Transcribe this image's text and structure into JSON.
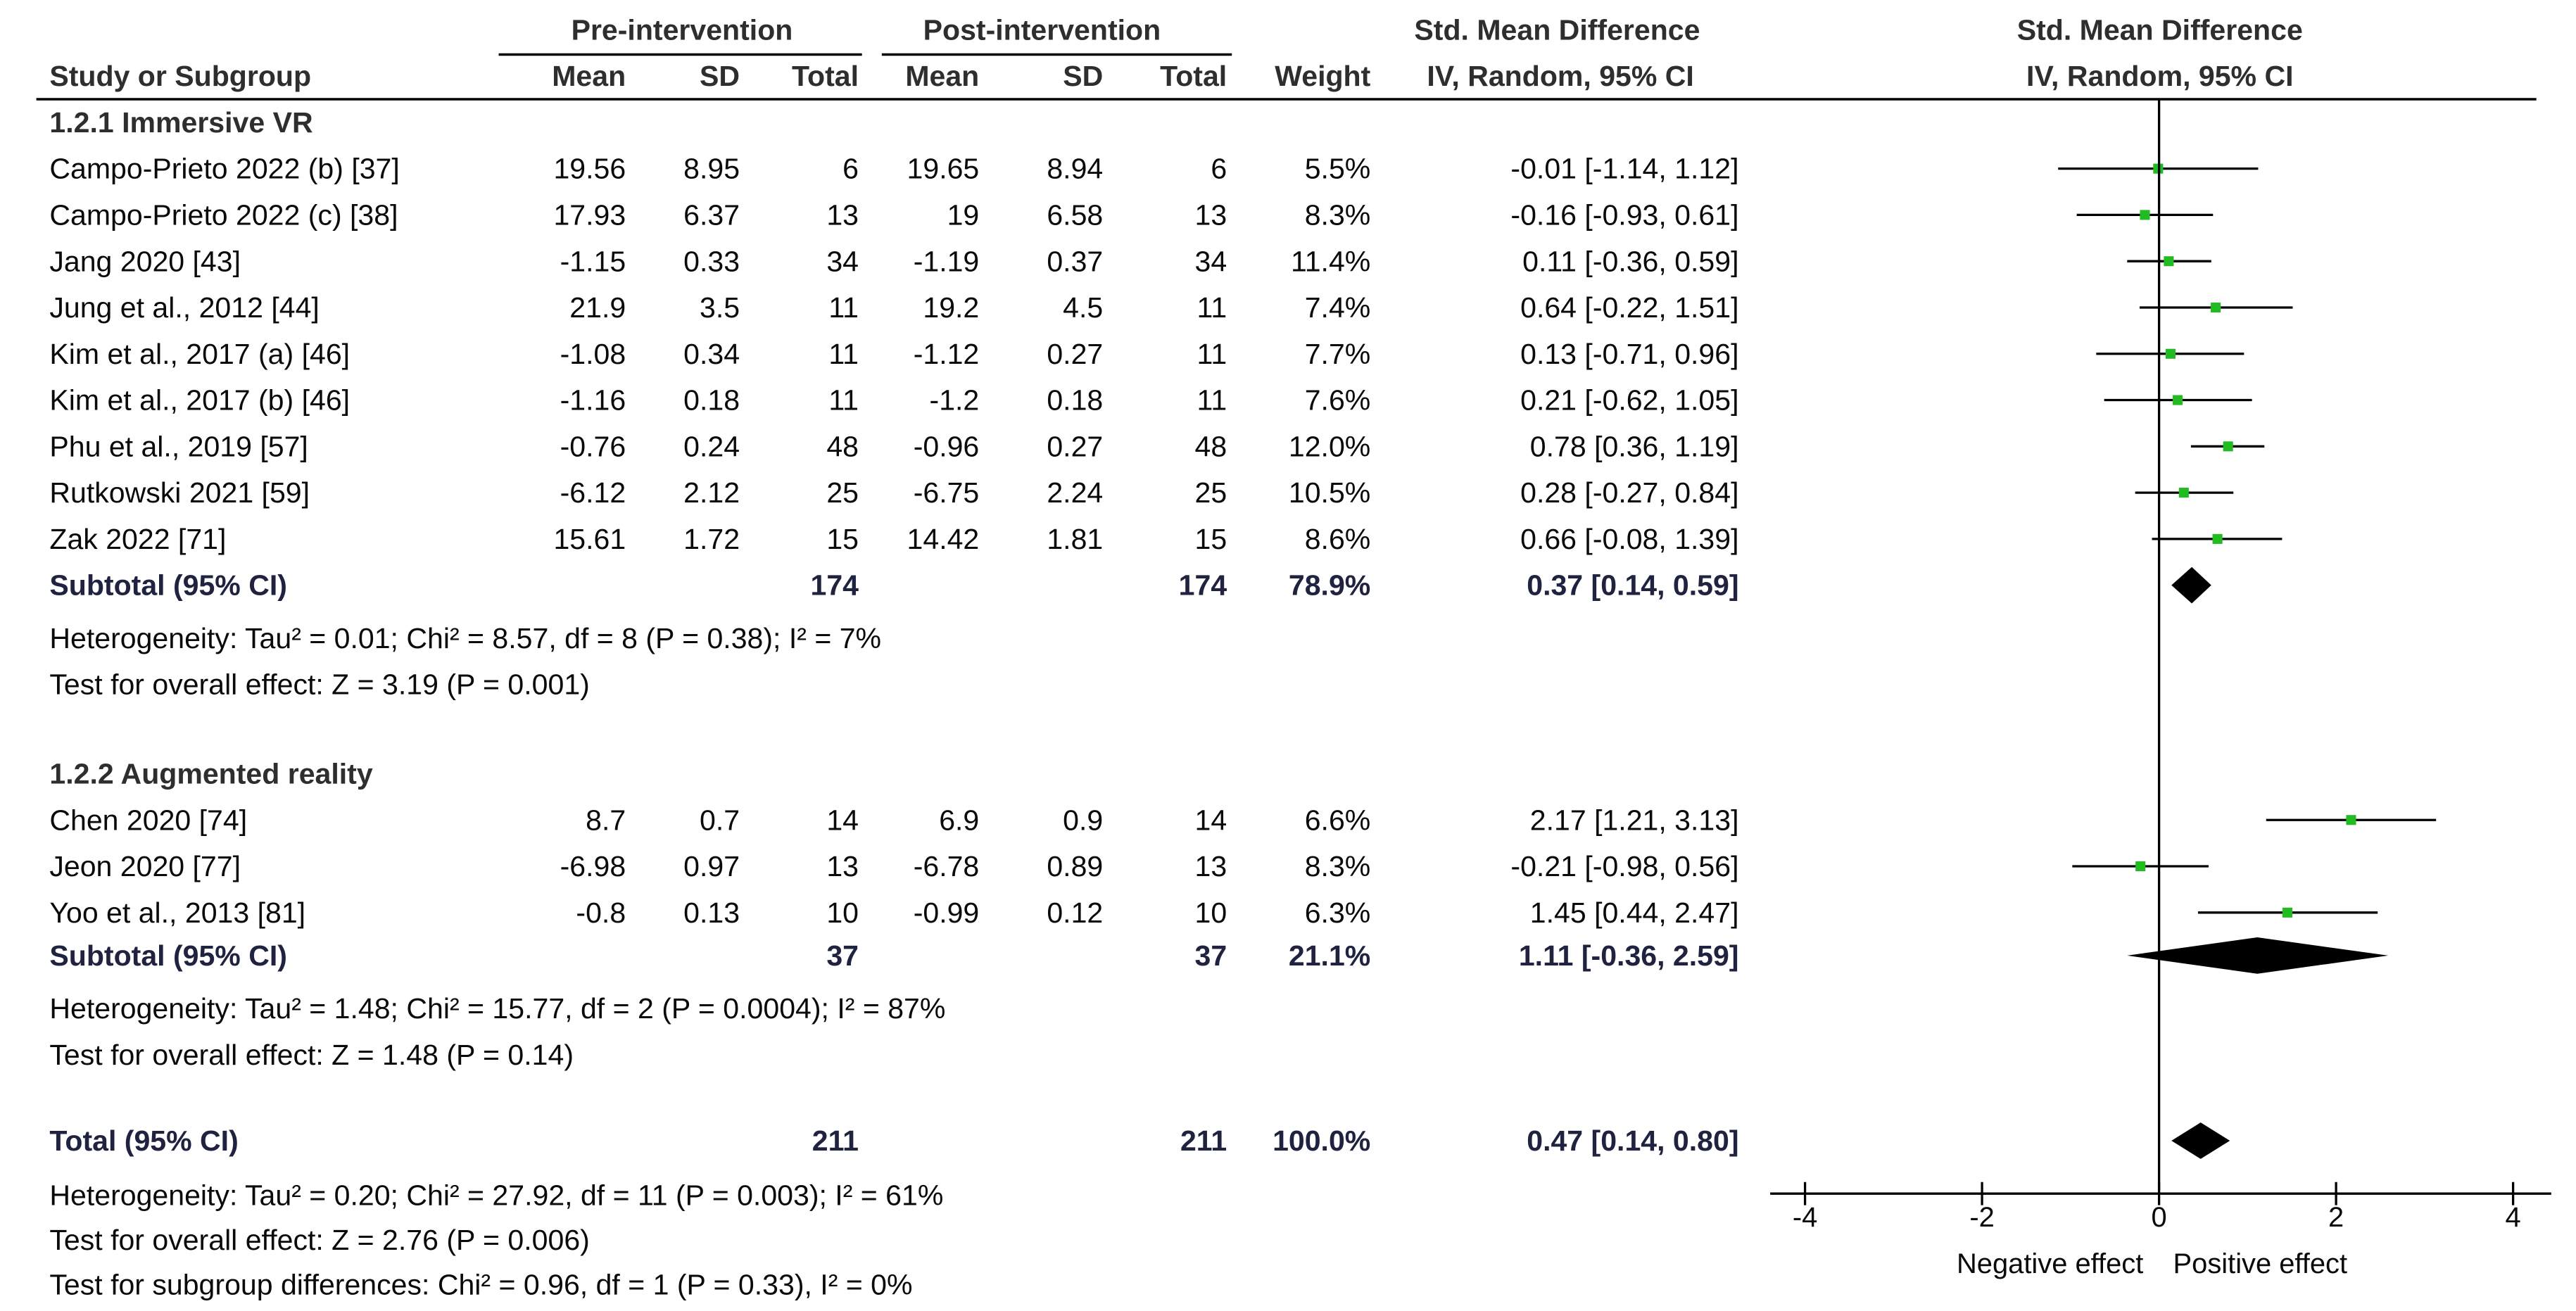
{
  "header": {
    "group_pre": "Pre-intervention",
    "group_post": "Post-intervention",
    "effect_title": "Std. Mean Difference",
    "effect_method": "IV, Random, 95% CI",
    "plot_title": "Std. Mean Difference",
    "plot_method": "IV, Random, 95% CI",
    "col_study": "Study or Subgroup",
    "col_mean": "Mean",
    "col_sd": "SD",
    "col_total": "Total",
    "col_weight": "Weight"
  },
  "colors": {
    "point": "#22bb22",
    "diamond": "#000000",
    "line": "#000000"
  },
  "chart_data": {
    "type": "forest",
    "xlim": [
      -4,
      4
    ],
    "xticks": [
      -4,
      -2,
      0,
      2,
      4
    ],
    "xtick_labels": [
      "-4",
      "-2",
      "0",
      "2",
      "4"
    ],
    "xlabel_left": "Negative effect",
    "xlabel_right": "Positive effect",
    "subgroups": [
      {
        "name": "1.2.1 Immersive VR",
        "studies": [
          {
            "study": "Campo-Prieto 2022 (b) [37]",
            "pre_mean": "19.56",
            "pre_sd": "8.95",
            "pre_total": "6",
            "post_mean": "19.65",
            "post_sd": "8.94",
            "post_total": "6",
            "weight": "5.5%",
            "ci_text": "-0.01 [-1.14, 1.12]",
            "est": -0.01,
            "lo": -1.14,
            "hi": 1.12
          },
          {
            "study": "Campo-Prieto 2022 (c) [38]",
            "pre_mean": "17.93",
            "pre_sd": "6.37",
            "pre_total": "13",
            "post_mean": "19",
            "post_sd": "6.58",
            "post_total": "13",
            "weight": "8.3%",
            "ci_text": "-0.16 [-0.93, 0.61]",
            "est": -0.16,
            "lo": -0.93,
            "hi": 0.61
          },
          {
            "study": "Jang 2020 [43]",
            "pre_mean": "-1.15",
            "pre_sd": "0.33",
            "pre_total": "34",
            "post_mean": "-1.19",
            "post_sd": "0.37",
            "post_total": "34",
            "weight": "11.4%",
            "ci_text": "0.11 [-0.36, 0.59]",
            "est": 0.11,
            "lo": -0.36,
            "hi": 0.59
          },
          {
            "study": "Jung et al., 2012 [44]",
            "pre_mean": "21.9",
            "pre_sd": "3.5",
            "pre_total": "11",
            "post_mean": "19.2",
            "post_sd": "4.5",
            "post_total": "11",
            "weight": "7.4%",
            "ci_text": "0.64 [-0.22, 1.51]",
            "est": 0.64,
            "lo": -0.22,
            "hi": 1.51
          },
          {
            "study": "Kim et al., 2017 (a) [46]",
            "pre_mean": "-1.08",
            "pre_sd": "0.34",
            "pre_total": "11",
            "post_mean": "-1.12",
            "post_sd": "0.27",
            "post_total": "11",
            "weight": "7.7%",
            "ci_text": "0.13 [-0.71, 0.96]",
            "est": 0.13,
            "lo": -0.71,
            "hi": 0.96
          },
          {
            "study": "Kim et al., 2017 (b) [46]",
            "pre_mean": "-1.16",
            "pre_sd": "0.18",
            "pre_total": "11",
            "post_mean": "-1.2",
            "post_sd": "0.18",
            "post_total": "11",
            "weight": "7.6%",
            "ci_text": "0.21 [-0.62, 1.05]",
            "est": 0.21,
            "lo": -0.62,
            "hi": 1.05
          },
          {
            "study": "Phu et al., 2019 [57]",
            "pre_mean": "-0.76",
            "pre_sd": "0.24",
            "pre_total": "48",
            "post_mean": "-0.96",
            "post_sd": "0.27",
            "post_total": "48",
            "weight": "12.0%",
            "ci_text": "0.78 [0.36, 1.19]",
            "est": 0.78,
            "lo": 0.36,
            "hi": 1.19
          },
          {
            "study": "Rutkowski 2021 [59]",
            "pre_mean": "-6.12",
            "pre_sd": "2.12",
            "pre_total": "25",
            "post_mean": "-6.75",
            "post_sd": "2.24",
            "post_total": "25",
            "weight": "10.5%",
            "ci_text": "0.28 [-0.27, 0.84]",
            "est": 0.28,
            "lo": -0.27,
            "hi": 0.84
          },
          {
            "study": "Zak 2022 [71]",
            "pre_mean": "15.61",
            "pre_sd": "1.72",
            "pre_total": "15",
            "post_mean": "14.42",
            "post_sd": "1.81",
            "post_total": "15",
            "weight": "8.6%",
            "ci_text": "0.66 [-0.08, 1.39]",
            "est": 0.66,
            "lo": -0.08,
            "hi": 1.39
          }
        ],
        "subtotal": {
          "label": "Subtotal (95% CI)",
          "pre_total": "174",
          "post_total": "174",
          "weight": "78.9%",
          "ci_text": "0.37 [0.14, 0.59]",
          "est": 0.37,
          "lo": 0.14,
          "hi": 0.59
        },
        "heterogeneity": "Heterogeneity: Tau² = 0.01; Chi² = 8.57, df = 8 (P = 0.38); I² = 7%",
        "overall": "Test for overall effect: Z = 3.19 (P = 0.001)"
      },
      {
        "name": "1.2.2 Augmented reality",
        "studies": [
          {
            "study": "Chen 2020 [74]",
            "pre_mean": "8.7",
            "pre_sd": "0.7",
            "pre_total": "14",
            "post_mean": "6.9",
            "post_sd": "0.9",
            "post_total": "14",
            "weight": "6.6%",
            "ci_text": "2.17 [1.21, 3.13]",
            "est": 2.17,
            "lo": 1.21,
            "hi": 3.13
          },
          {
            "study": "Jeon 2020 [77]",
            "pre_mean": "-6.98",
            "pre_sd": "0.97",
            "pre_total": "13",
            "post_mean": "-6.78",
            "post_sd": "0.89",
            "post_total": "13",
            "weight": "8.3%",
            "ci_text": "-0.21 [-0.98, 0.56]",
            "est": -0.21,
            "lo": -0.98,
            "hi": 0.56
          },
          {
            "study": "Yoo et al., 2013 [81]",
            "pre_mean": "-0.8",
            "pre_sd": "0.13",
            "pre_total": "10",
            "post_mean": "-0.99",
            "post_sd": "0.12",
            "post_total": "10",
            "weight": "6.3%",
            "ci_text": "1.45 [0.44, 2.47]",
            "est": 1.45,
            "lo": 0.44,
            "hi": 2.47
          }
        ],
        "subtotal": {
          "label": "Subtotal (95% CI)",
          "pre_total": "37",
          "post_total": "37",
          "weight": "21.1%",
          "ci_text": "1.11 [-0.36, 2.59]",
          "est": 1.11,
          "lo": -0.36,
          "hi": 2.59
        },
        "heterogeneity": "Heterogeneity: Tau² = 1.48; Chi² = 15.77, df = 2 (P = 0.0004); I² = 87%",
        "overall": "Test for overall effect: Z = 1.48 (P = 0.14)"
      }
    ],
    "total": {
      "label": "Total (95% CI)",
      "pre_total": "211",
      "post_total": "211",
      "weight": "100.0%",
      "ci_text": "0.47 [0.14, 0.80]",
      "est": 0.47,
      "lo": 0.14,
      "hi": 0.8
    },
    "footer": [
      "Heterogeneity: Tau² = 0.20; Chi² = 27.92, df = 11 (P = 0.003); I² = 61%",
      "Test for overall effect: Z = 2.76 (P = 0.006)",
      "Test for subgroup differences: Chi² = 0.96, df = 1 (P = 0.33), I² = 0%"
    ]
  }
}
